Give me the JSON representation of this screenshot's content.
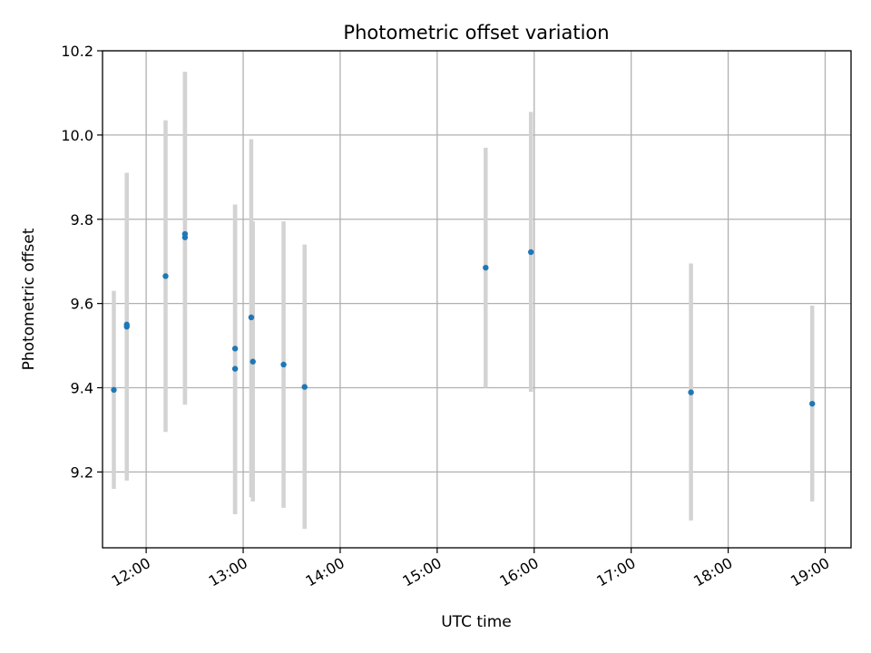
{
  "chart_data": {
    "type": "scatter",
    "title": "Photometric offset variation",
    "xlabel": "UTC time",
    "ylabel": "Photometric offset",
    "xlim": [
      "11:33",
      "19:16"
    ],
    "ylim": [
      9.02,
      10.2
    ],
    "x_ticks": [
      "12:00",
      "13:00",
      "14:00",
      "15:00",
      "16:00",
      "17:00",
      "18:00",
      "19:00"
    ],
    "y_ticks": [
      9.2,
      9.4,
      9.6,
      9.8,
      10.0,
      10.2
    ],
    "y_tick_labels": [
      "9.2",
      "9.4",
      "9.6",
      "9.8",
      "10.0",
      "10.2"
    ],
    "grid": true,
    "marker_color": "#1f77b4",
    "errorbar_color": "#d3d3d3",
    "points": [
      {
        "time": "11:40",
        "value": 9.395,
        "err_low": 9.16,
        "err_high": 9.63
      },
      {
        "time": "11:48",
        "value": 9.545,
        "err_low": 9.18,
        "err_high": 9.91
      },
      {
        "time": "11:48",
        "value": 9.55,
        "err_low": 9.18,
        "err_high": 9.91
      },
      {
        "time": "12:12",
        "value": 9.665,
        "err_low": 9.295,
        "err_high": 10.035
      },
      {
        "time": "12:24",
        "value": 9.765,
        "err_low": 9.36,
        "err_high": 10.15
      },
      {
        "time": "12:24",
        "value": 9.757,
        "err_low": 9.36,
        "err_high": 10.15
      },
      {
        "time": "12:55",
        "value": 9.493,
        "err_low": 9.1,
        "err_high": 9.835
      },
      {
        "time": "12:55",
        "value": 9.445,
        "err_low": 9.1,
        "err_high": 9.835
      },
      {
        "time": "13:05",
        "value": 9.567,
        "err_low": 9.14,
        "err_high": 9.99
      },
      {
        "time": "13:06",
        "value": 9.462,
        "err_low": 9.13,
        "err_high": 9.795
      },
      {
        "time": "13:25",
        "value": 9.455,
        "err_low": 9.115,
        "err_high": 9.795
      },
      {
        "time": "13:38",
        "value": 9.402,
        "err_low": 9.065,
        "err_high": 9.74
      },
      {
        "time": "15:30",
        "value": 9.685,
        "err_low": 9.4,
        "err_high": 9.97
      },
      {
        "time": "15:58",
        "value": 9.722,
        "err_low": 9.39,
        "err_high": 10.055
      },
      {
        "time": "17:37",
        "value": 9.389,
        "err_low": 9.085,
        "err_high": 9.695
      },
      {
        "time": "18:52",
        "value": 9.362,
        "err_low": 9.13,
        "err_high": 9.595
      }
    ]
  }
}
